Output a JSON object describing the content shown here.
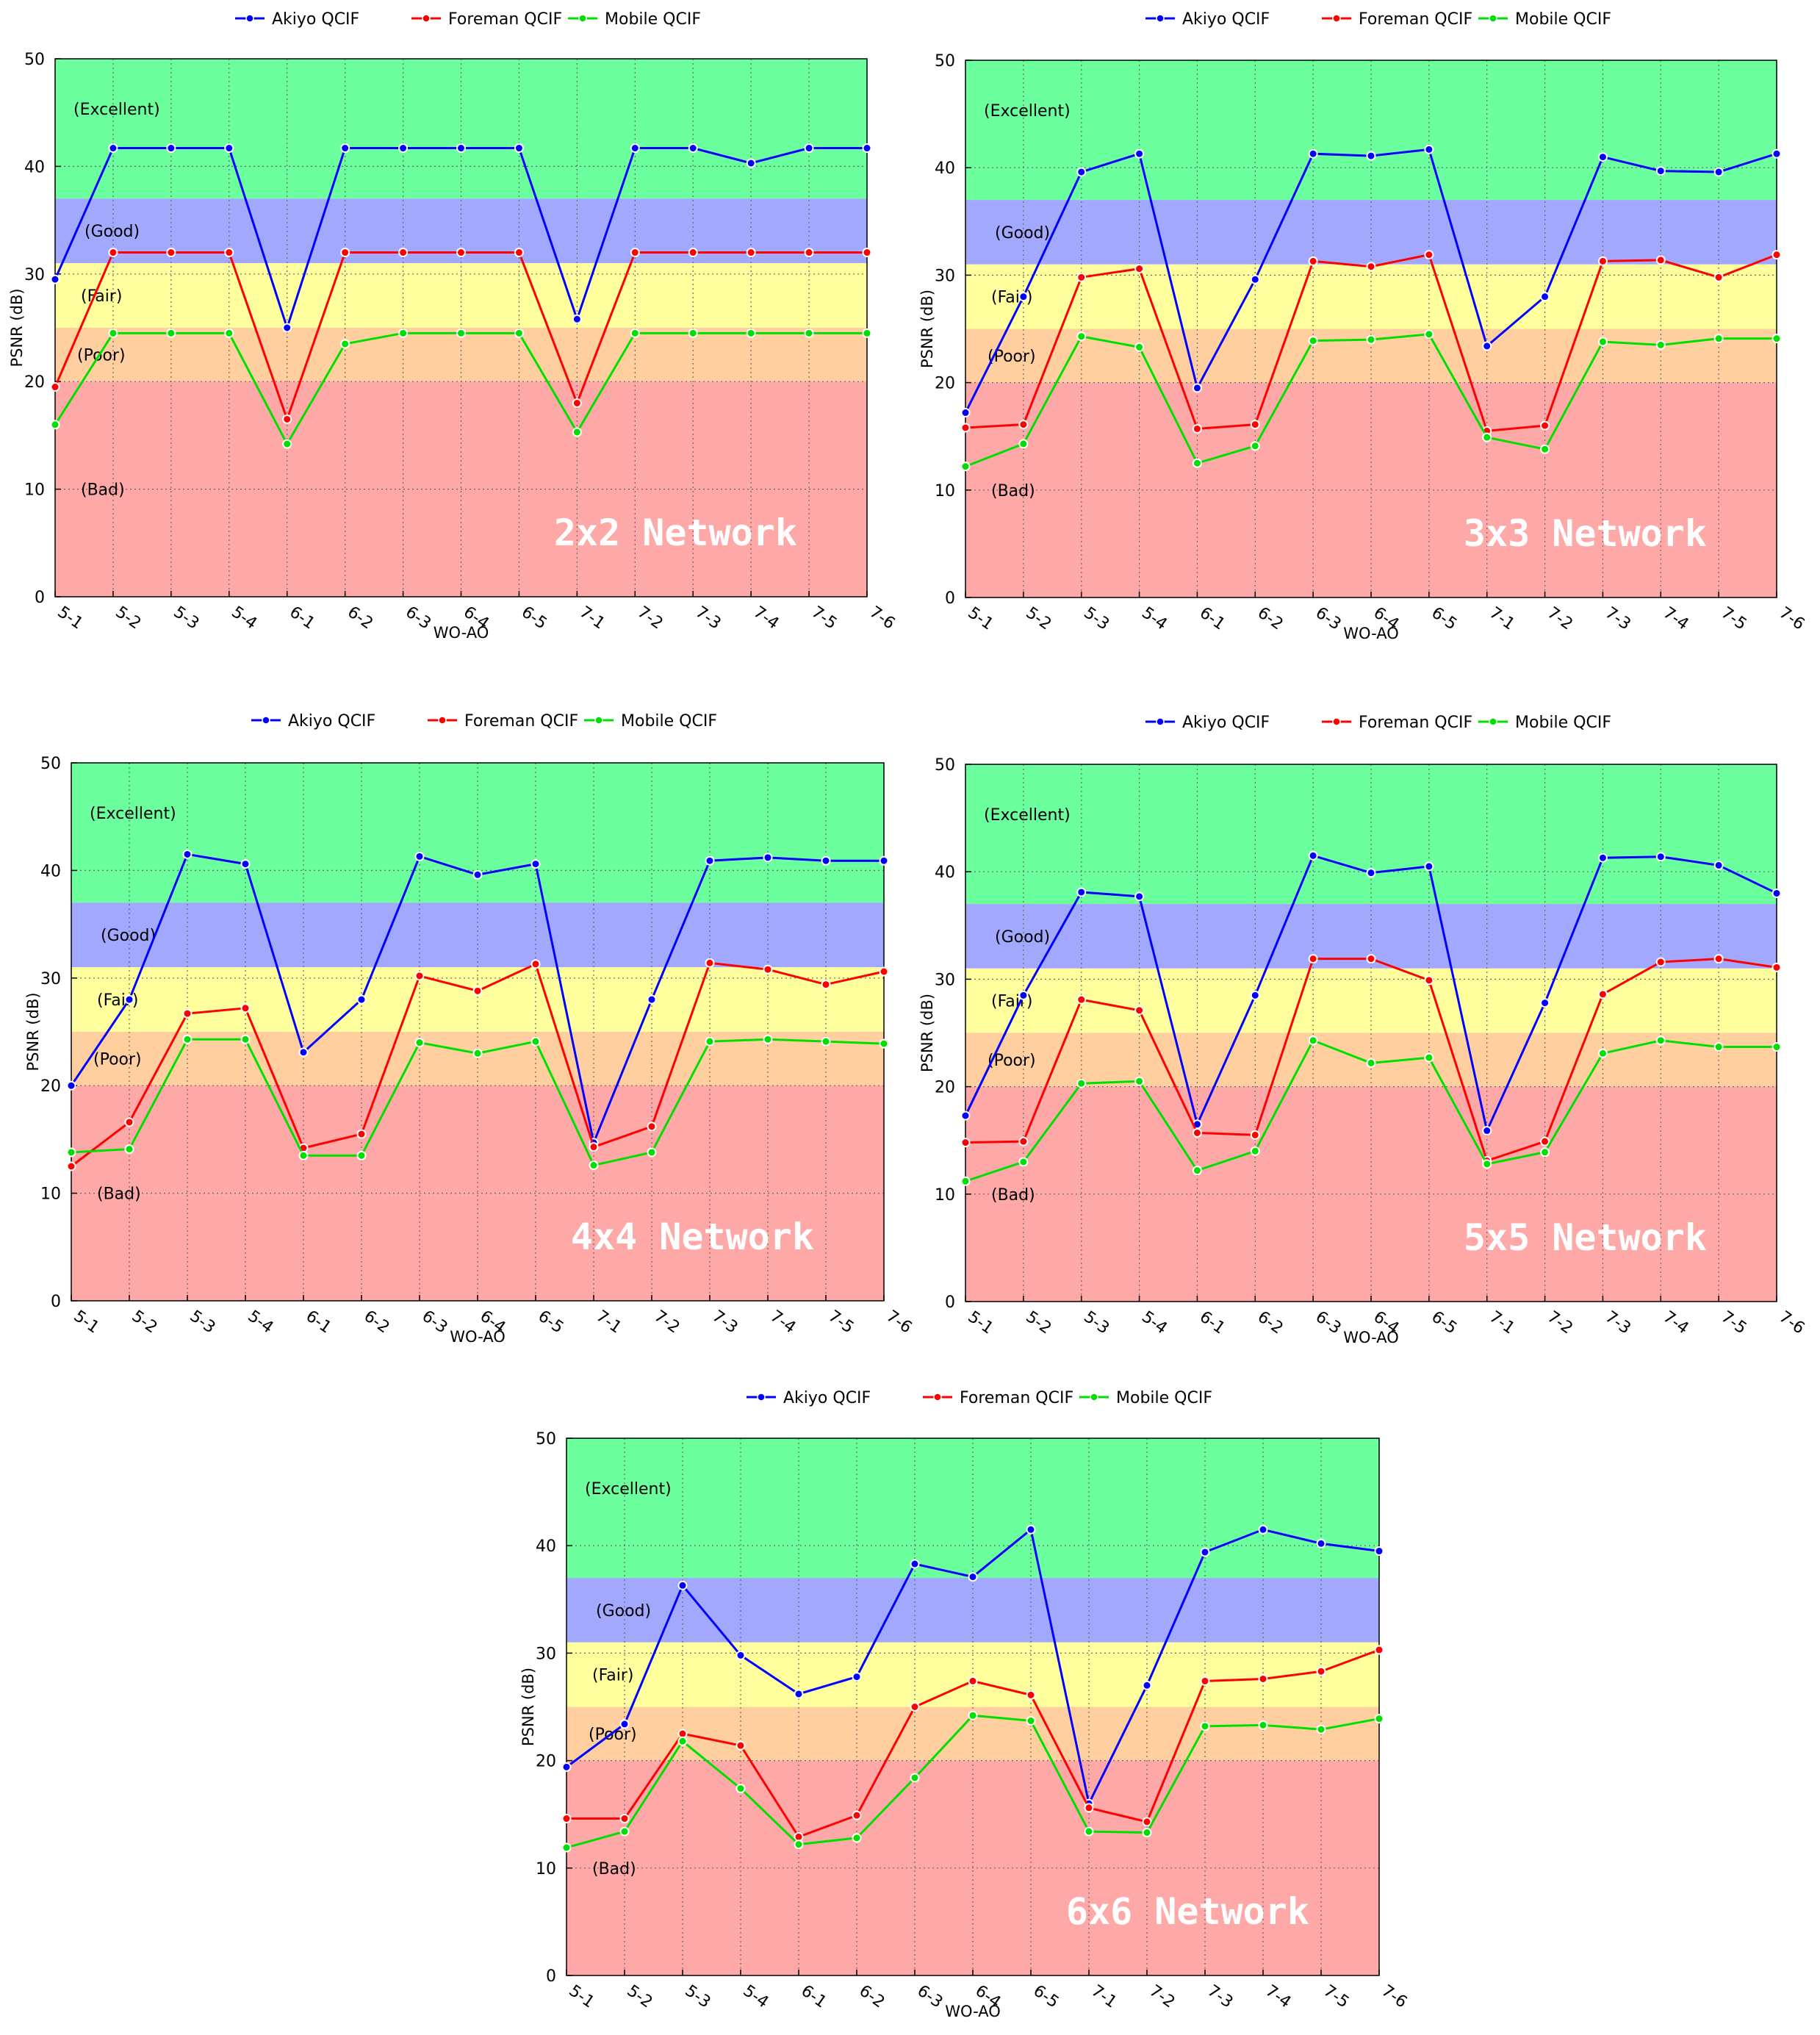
{
  "chart_data": [
    {
      "type": "line",
      "title": "2x2 Network",
      "xlabel": "WO-AO",
      "ylabel": "PSNR (dB)",
      "ylim": [
        0,
        50
      ],
      "yticks": [
        "0",
        "10",
        "20",
        "30",
        "40",
        "50"
      ],
      "grid": true,
      "legend_position": "top",
      "categories": [
        "5-1",
        "5-2",
        "5-3",
        "5-4",
        "6-1",
        "6-2",
        "6-3",
        "6-4",
        "6-5",
        "7-1",
        "7-2",
        "7-3",
        "7-4",
        "7-5",
        "7-6"
      ],
      "bands": [
        {
          "label": "(Excellent)",
          "from": 37,
          "to": 50,
          "color": "#6cff9e"
        },
        {
          "label": "(Good)",
          "from": 31,
          "to": 37,
          "color": "#a3a8ff"
        },
        {
          "label": "(Fair)",
          "from": 25,
          "to": 31,
          "color": "#ffff9e"
        },
        {
          "label": "(Poor)",
          "from": 20,
          "to": 25,
          "color": "#ffcfa0"
        },
        {
          "label": "(Bad)",
          "from": 0,
          "to": 20,
          "color": "#ffa8a8"
        }
      ],
      "series": [
        {
          "name": "Akiyo QCIF",
          "color": "#0000ff",
          "values": [
            29.5,
            41.7,
            41.7,
            41.7,
            25.0,
            41.7,
            41.7,
            41.7,
            41.7,
            25.8,
            41.7,
            41.7,
            40.3,
            41.7,
            41.7
          ]
        },
        {
          "name": "Foreman QCIF",
          "color": "#ff0000",
          "values": [
            19.5,
            32.0,
            32.0,
            32.0,
            16.5,
            32.0,
            32.0,
            32.0,
            32.0,
            18.0,
            32.0,
            32.0,
            32.0,
            32.0,
            32.0
          ]
        },
        {
          "name": "Mobile QCIF",
          "color": "#00e000",
          "values": [
            16.0,
            24.5,
            24.5,
            24.5,
            14.2,
            23.5,
            24.5,
            24.5,
            24.5,
            15.3,
            24.5,
            24.5,
            24.5,
            24.5,
            24.5
          ]
        }
      ]
    },
    {
      "type": "line",
      "title": "3x3 Network",
      "xlabel": "WO-AO",
      "ylabel": "PSNR (dB)",
      "ylim": [
        0,
        50
      ],
      "yticks": [
        "0",
        "10",
        "20",
        "30",
        "40",
        "50"
      ],
      "grid": true,
      "legend_position": "top",
      "categories": [
        "5-1",
        "5-2",
        "5-3",
        "5-4",
        "6-1",
        "6-2",
        "6-3",
        "6-4",
        "6-5",
        "7-1",
        "7-2",
        "7-3",
        "7-4",
        "7-5",
        "7-6"
      ],
      "bands": [
        {
          "label": "(Excellent)",
          "from": 37,
          "to": 50,
          "color": "#6cff9e"
        },
        {
          "label": "(Good)",
          "from": 31,
          "to": 37,
          "color": "#a3a8ff"
        },
        {
          "label": "(Fair)",
          "from": 25,
          "to": 31,
          "color": "#ffff9e"
        },
        {
          "label": "(Poor)",
          "from": 20,
          "to": 25,
          "color": "#ffcfa0"
        },
        {
          "label": "(Bad)",
          "from": 0,
          "to": 20,
          "color": "#ffa8a8"
        }
      ],
      "series": [
        {
          "name": "Akiyo QCIF",
          "color": "#0000ff",
          "values": [
            17.2,
            28.0,
            39.6,
            41.3,
            19.5,
            29.6,
            41.3,
            41.1,
            41.7,
            23.4,
            28.0,
            41.0,
            39.7,
            39.6,
            41.3
          ]
        },
        {
          "name": "Foreman QCIF",
          "color": "#ff0000",
          "values": [
            15.8,
            16.1,
            29.8,
            30.6,
            15.7,
            16.1,
            31.3,
            30.8,
            31.9,
            15.5,
            16.0,
            31.3,
            31.4,
            29.8,
            31.9
          ]
        },
        {
          "name": "Mobile QCIF",
          "color": "#00e000",
          "values": [
            12.2,
            14.3,
            24.3,
            23.3,
            12.5,
            14.1,
            23.9,
            24.0,
            24.5,
            14.9,
            13.8,
            23.8,
            23.5,
            24.1,
            24.1
          ]
        }
      ]
    },
    {
      "type": "line",
      "title": "4x4 Network",
      "xlabel": "WO-AO",
      "ylabel": "PSNR (dB)",
      "ylim": [
        0,
        50
      ],
      "yticks": [
        "0",
        "10",
        "20",
        "30",
        "40",
        "50"
      ],
      "grid": true,
      "legend_position": "top",
      "categories": [
        "5-1",
        "5-2",
        "5-3",
        "5-4",
        "6-1",
        "6-2",
        "6-3",
        "6-4",
        "6-5",
        "7-1",
        "7-2",
        "7-3",
        "7-4",
        "7-5",
        "7-6"
      ],
      "bands": [
        {
          "label": "(Excellent)",
          "from": 37,
          "to": 50,
          "color": "#6cff9e"
        },
        {
          "label": "(Good)",
          "from": 31,
          "to": 37,
          "color": "#a3a8ff"
        },
        {
          "label": "(Fair)",
          "from": 25,
          "to": 31,
          "color": "#ffff9e"
        },
        {
          "label": "(Poor)",
          "from": 20,
          "to": 25,
          "color": "#ffcfa0"
        },
        {
          "label": "(Bad)",
          "from": 0,
          "to": 20,
          "color": "#ffa8a8"
        }
      ],
      "series": [
        {
          "name": "Akiyo QCIF",
          "color": "#0000ff",
          "values": [
            20.0,
            28.0,
            41.5,
            40.6,
            23.1,
            28.0,
            41.3,
            39.6,
            40.6,
            14.7,
            28.0,
            40.9,
            41.2,
            40.9,
            40.9
          ]
        },
        {
          "name": "Foreman QCIF",
          "color": "#ff0000",
          "values": [
            12.5,
            16.6,
            26.7,
            27.2,
            14.2,
            15.5,
            30.2,
            28.8,
            31.3,
            14.3,
            16.2,
            31.4,
            30.8,
            29.4,
            30.6
          ]
        },
        {
          "name": "Mobile QCIF",
          "color": "#00e000",
          "values": [
            13.8,
            14.1,
            24.3,
            24.3,
            13.5,
            13.5,
            24.0,
            23.0,
            24.1,
            12.6,
            13.8,
            24.1,
            24.3,
            24.1,
            23.9
          ]
        }
      ]
    },
    {
      "type": "line",
      "title": "5x5 Network",
      "xlabel": "WO-AO",
      "ylabel": "PSNR (dB)",
      "ylim": [
        0,
        50
      ],
      "yticks": [
        "0",
        "10",
        "20",
        "30",
        "40",
        "50"
      ],
      "grid": true,
      "legend_position": "top",
      "categories": [
        "5-1",
        "5-2",
        "5-3",
        "5-4",
        "6-1",
        "6-2",
        "6-3",
        "6-4",
        "6-5",
        "7-1",
        "7-2",
        "7-3",
        "7-4",
        "7-5",
        "7-6"
      ],
      "bands": [
        {
          "label": "(Excellent)",
          "from": 37,
          "to": 50,
          "color": "#6cff9e"
        },
        {
          "label": "(Good)",
          "from": 31,
          "to": 37,
          "color": "#a3a8ff"
        },
        {
          "label": "(Fair)",
          "from": 25,
          "to": 31,
          "color": "#ffff9e"
        },
        {
          "label": "(Poor)",
          "from": 20,
          "to": 25,
          "color": "#ffcfa0"
        },
        {
          "label": "(Bad)",
          "from": 0,
          "to": 20,
          "color": "#ffa8a8"
        }
      ],
      "series": [
        {
          "name": "Akiyo QCIF",
          "color": "#0000ff",
          "values": [
            17.3,
            28.5,
            38.1,
            37.7,
            16.5,
            28.5,
            41.5,
            39.9,
            40.5,
            15.9,
            27.8,
            41.3,
            41.4,
            40.6,
            38.0
          ]
        },
        {
          "name": "Foreman QCIF",
          "color": "#ff0000",
          "values": [
            14.8,
            14.9,
            28.1,
            27.1,
            15.7,
            15.5,
            31.9,
            31.9,
            29.9,
            13.1,
            14.9,
            28.6,
            31.6,
            31.9,
            31.1
          ]
        },
        {
          "name": "Mobile QCIF",
          "color": "#00e000",
          "values": [
            11.2,
            13.0,
            20.3,
            20.5,
            12.2,
            14.0,
            24.3,
            22.2,
            22.7,
            12.8,
            13.9,
            23.1,
            24.3,
            23.7,
            23.7
          ]
        }
      ]
    },
    {
      "type": "line",
      "title": "6x6 Network",
      "xlabel": "WO-AO",
      "ylabel": "PSNR (dB)",
      "ylim": [
        0,
        50
      ],
      "yticks": [
        "0",
        "10",
        "20",
        "30",
        "40",
        "50"
      ],
      "grid": true,
      "legend_position": "top",
      "categories": [
        "5-1",
        "5-2",
        "5-3",
        "5-4",
        "6-1",
        "6-2",
        "6-3",
        "6-4",
        "6-5",
        "7-1",
        "7-2",
        "7-3",
        "7-4",
        "7-5",
        "7-6"
      ],
      "bands": [
        {
          "label": "(Excellent)",
          "from": 37,
          "to": 50,
          "color": "#6cff9e"
        },
        {
          "label": "(Good)",
          "from": 31,
          "to": 37,
          "color": "#a3a8ff"
        },
        {
          "label": "(Fair)",
          "from": 25,
          "to": 31,
          "color": "#ffff9e"
        },
        {
          "label": "(Poor)",
          "from": 20,
          "to": 25,
          "color": "#ffcfa0"
        },
        {
          "label": "(Bad)",
          "from": 0,
          "to": 20,
          "color": "#ffa8a8"
        }
      ],
      "series": [
        {
          "name": "Akiyo QCIF",
          "color": "#0000ff",
          "values": [
            19.4,
            23.4,
            36.3,
            29.8,
            26.2,
            27.8,
            38.3,
            37.1,
            41.5,
            16.0,
            27.0,
            39.4,
            41.5,
            40.2,
            39.5
          ]
        },
        {
          "name": "Foreman QCIF",
          "color": "#ff0000",
          "values": [
            14.6,
            14.6,
            22.5,
            21.4,
            12.9,
            14.9,
            25.0,
            27.4,
            26.1,
            15.6,
            14.3,
            27.4,
            27.6,
            28.3,
            30.3
          ]
        },
        {
          "name": "Mobile QCIF",
          "color": "#00e000",
          "values": [
            11.9,
            13.4,
            21.8,
            17.4,
            12.2,
            12.8,
            18.4,
            24.2,
            23.7,
            13.4,
            13.3,
            23.2,
            23.3,
            22.9,
            23.9
          ]
        }
      ]
    }
  ]
}
